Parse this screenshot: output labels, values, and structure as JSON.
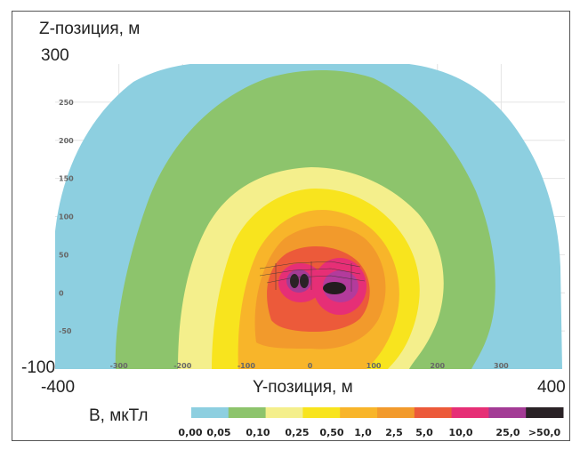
{
  "chart_data": {
    "type": "heatmap",
    "ylabel": "Z-позиция, м",
    "ylabel_max": "300",
    "ylabel_min": "-100",
    "xlabel": "Y-позиция, м",
    "xlabel_min": "-400",
    "xlabel_max": "400",
    "xlim": [
      -400,
      400
    ],
    "ylim": [
      -100,
      300
    ],
    "grid": true,
    "x_ticks": [
      "-300",
      "-200",
      "-100",
      "0",
      "100",
      "200",
      "300"
    ],
    "y_ticks": [
      "250",
      "200",
      "150",
      "100",
      "50",
      "0",
      "-50"
    ],
    "legend": {
      "title": "B, мкТл",
      "position": "bottom",
      "levels": [
        "0,00",
        "0,05",
        "0,10",
        "0,25",
        "0,50",
        "1,0",
        "2,5",
        "5,0",
        "10,0",
        "25,0",
        ">50,0"
      ],
      "colors": [
        "#8dcfe0",
        "#8dc46c",
        "#f4ef8c",
        "#f8e41e",
        "#f8b52a",
        "#f29a2c",
        "#ec5a3a",
        "#e62f76",
        "#a33b95",
        "#2a2226"
      ]
    }
  }
}
